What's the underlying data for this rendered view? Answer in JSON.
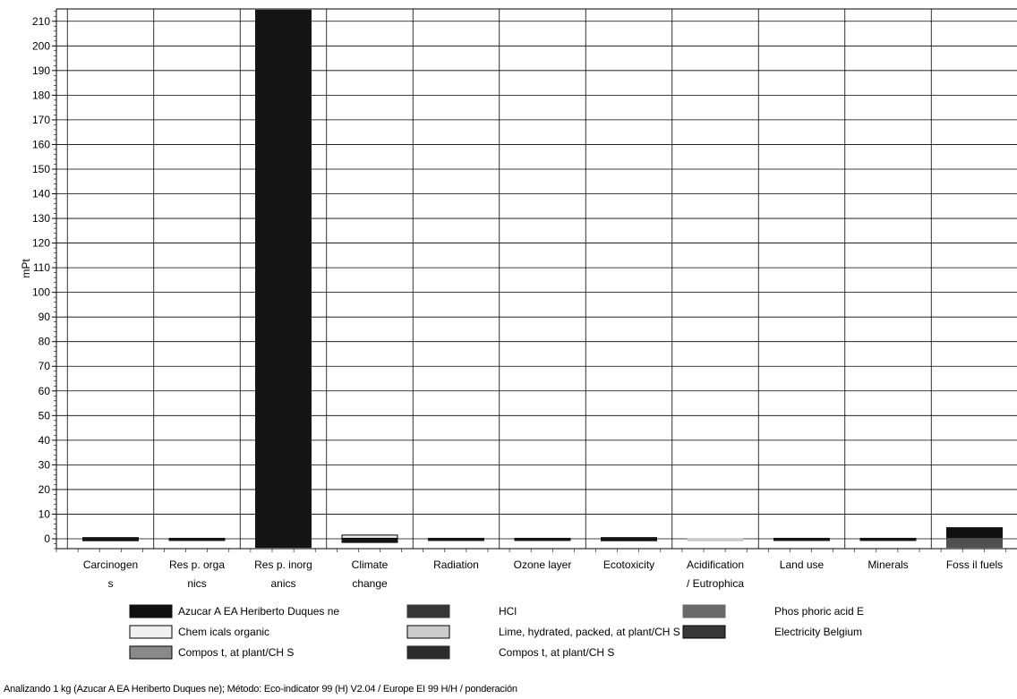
{
  "chart_data": {
    "type": "bar",
    "ylabel": "mPt",
    "ylim": [
      -4,
      215
    ],
    "yticks": [
      0,
      10,
      20,
      30,
      40,
      50,
      60,
      70,
      80,
      90,
      100,
      110,
      120,
      130,
      140,
      150,
      160,
      170,
      180,
      190,
      200,
      210
    ],
    "grid": true,
    "categories": [
      [
        "Carcinogen",
        "s"
      ],
      [
        "Res p. orga",
        "nics"
      ],
      [
        "Res p. inorg",
        "anics"
      ],
      [
        "Climate",
        "change"
      ],
      [
        "Radiation"
      ],
      [
        "Ozone layer"
      ],
      [
        "Ecotoxicity"
      ],
      [
        "Acidification",
        "/ Eutrophica"
      ],
      [
        "Land use"
      ],
      [
        "Minerals"
      ],
      [
        "Foss il fuels"
      ]
    ],
    "segments": [
      {
        "category": 0,
        "from": -0.8,
        "to": 0.5,
        "color": "#151515"
      },
      {
        "category": 1,
        "from": -0.2,
        "to": 0.2,
        "color": "#151515"
      },
      {
        "category": 2,
        "from": -3.5,
        "to": 214.5,
        "color": "#151515"
      },
      {
        "category": 3,
        "from": -1.5,
        "to": 0.2,
        "color": "#151515"
      },
      {
        "category": 3,
        "from": 0.2,
        "to": 1.5,
        "color": "#eeeeee",
        "stroke": "#000000"
      },
      {
        "category": 4,
        "from": -0.2,
        "to": 0.2,
        "color": "#151515"
      },
      {
        "category": 5,
        "from": -0.2,
        "to": 0.2,
        "color": "#151515"
      },
      {
        "category": 6,
        "from": -0.8,
        "to": 0.5,
        "color": "#151515"
      },
      {
        "category": 7,
        "from": -0.8,
        "to": 0.1,
        "color": "#c8c8c8"
      },
      {
        "category": 8,
        "from": -0.2,
        "to": 0.2,
        "color": "#151515"
      },
      {
        "category": 9,
        "from": -0.2,
        "to": 0.2,
        "color": "#151515"
      },
      {
        "category": 10,
        "from": -3.5,
        "to": 0.5,
        "color": "#505050"
      },
      {
        "category": 10,
        "from": 0.5,
        "to": 4.5,
        "color": "#101010"
      }
    ],
    "legend": [
      {
        "label": "Azucar A EA Heriberto Duques ne",
        "color": "#101010"
      },
      {
        "label": "HCl",
        "color": "#383838"
      },
      {
        "label": "Phos phoric acid E",
        "color": "#6a6a6a"
      },
      {
        "label": "Chem icals organic",
        "color": "#f0f0f0",
        "stroke": "#000000"
      },
      {
        "label": "Lime, hydrated, packed, at plant/CH S",
        "color": "#cccccc",
        "stroke": "#000000"
      },
      {
        "label": "Electricity Belgium",
        "color": "#383838",
        "stroke": "#000000"
      },
      {
        "label": "Compos t, at plant/CH S",
        "color": "#8a8a8a",
        "stroke": "#000000"
      },
      {
        "label": "Compos t, at plant/CH S",
        "color": "#2c2c2c"
      }
    ]
  },
  "footer_text": "Analizando 1 kg (Azucar A EA Heriberto Duques ne); Método: Eco-indicator 99 (H) V2.04 / Europe EI 99 H/H / ponderación"
}
